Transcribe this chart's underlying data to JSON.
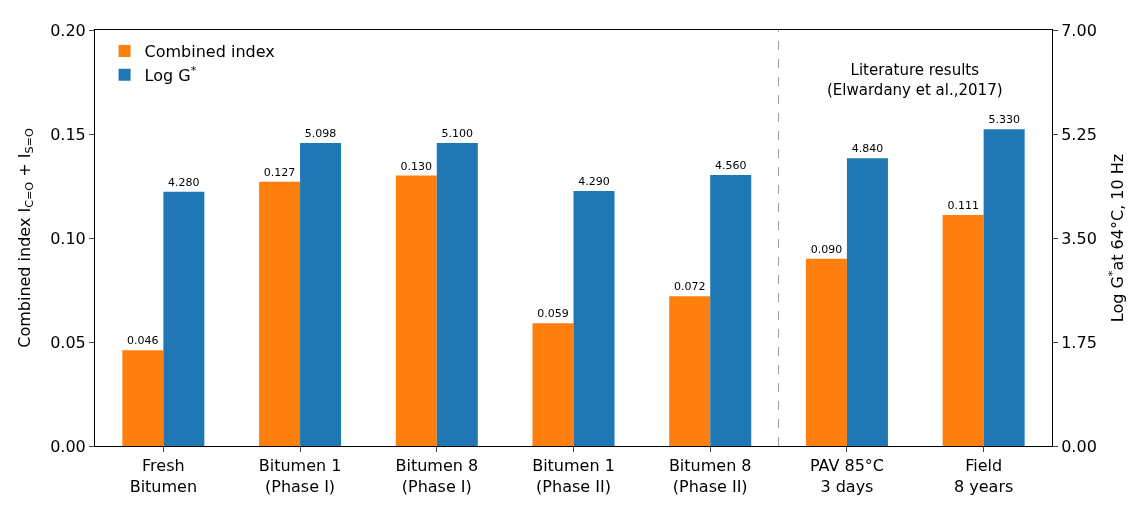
{
  "chart_data": {
    "type": "bar",
    "categories": [
      "Fresh\nBitumen",
      "Bitumen 1\n(Phase I)",
      "Bitumen 8\n(Phase I)",
      "Bitumen 1\n(Phase II)",
      "Bitumen 8\n(Phase II)",
      "PAV 85°C\n3 days",
      "Field\n8 years"
    ],
    "series": [
      {
        "name": "Combined index",
        "color": "#ff7f0e",
        "values": [
          0.046,
          0.127,
          0.13,
          0.059,
          0.072,
          0.09,
          0.111
        ],
        "value_labels": [
          "0.046",
          "0.127",
          "0.130",
          "0.059",
          "0.072",
          "0.090",
          "0.111"
        ]
      },
      {
        "name": "Log G$^{*}$",
        "color": "#1f77b4",
        "axis": "y2",
        "values": [
          4.28,
          5.098,
          5.1,
          4.29,
          4.56,
          4.84,
          5.33
        ],
        "value_labels": [
          "4.280",
          "5.098",
          "5.100",
          "4.290",
          "4.560",
          "4.840",
          "5.330"
        ]
      }
    ],
    "ylabel": "Combined index I$_{C=O}$ + I$_{S=O}$",
    "y2label": "Log G$^{*}$at 64°C, 10 Hz",
    "ylim": [
      0,
      0.2
    ],
    "yticks": [
      {
        "value": 0,
        "label": "0.00"
      },
      {
        "value": 0.05,
        "label": "0.05"
      },
      {
        "value": 0.1,
        "label": "0.10"
      },
      {
        "value": 0.15,
        "label": "0.15"
      },
      {
        "value": 0.2,
        "label": "0.20"
      }
    ],
    "y2lim": [
      0,
      7
    ],
    "y2ticks": [
      {
        "value": 0,
        "label": "0.00"
      },
      {
        "value": 1.75,
        "label": "1.75"
      },
      {
        "value": 3.5,
        "label": "3.50"
      },
      {
        "value": 5.25,
        "label": "5.25"
      },
      {
        "value": 7,
        "label": "7.00"
      }
    ],
    "annotations": [
      "Literature results\n(Elwardany et al.,2017)"
    ],
    "legend": "top left"
  }
}
